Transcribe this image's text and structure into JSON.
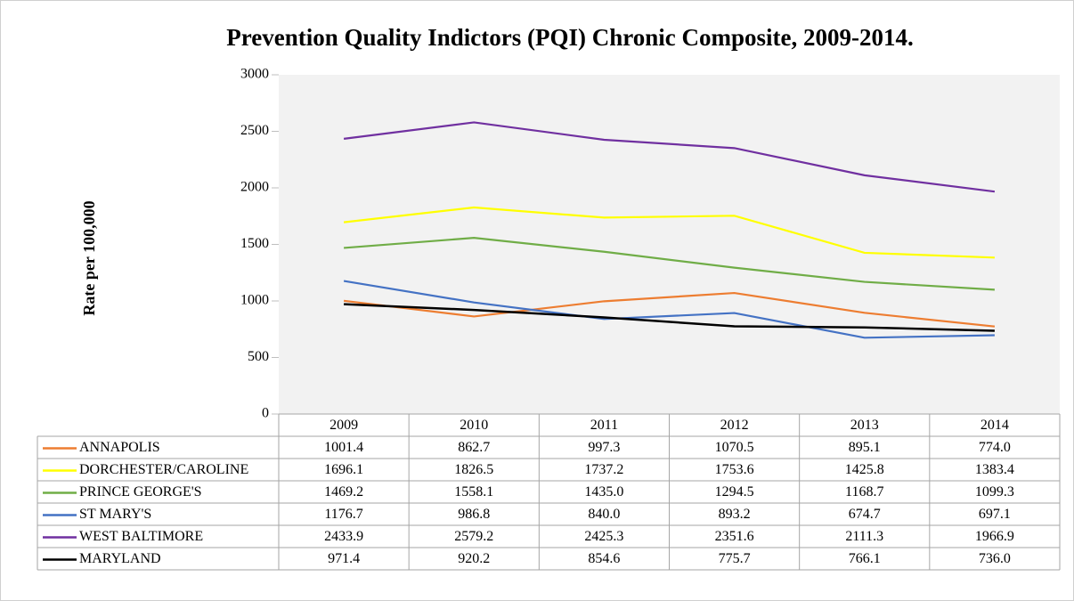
{
  "chart_data": {
    "type": "line",
    "title": "Prevention Quality Indictors (PQI) Chronic Composite, 2009-2014.",
    "y_label": "Rate per 100,000",
    "categories": [
      "2009",
      "2010",
      "2011",
      "2012",
      "2013",
      "2014"
    ],
    "ylim": [
      0,
      3000
    ],
    "yticks": [
      0,
      500,
      1000,
      1500,
      2000,
      2500,
      3000
    ],
    "series": [
      {
        "name": "ANNAPOLIS",
        "color": "#ed7d31",
        "values": [
          1001.4,
          862.7,
          997.3,
          1070.5,
          895.1,
          774
        ],
        "value_labels": [
          "1001.4",
          "862.7",
          "997.3",
          "1070.5",
          "895.1",
          "774.0"
        ]
      },
      {
        "name": "DORCHESTER/CAROLINE",
        "color": "#ffff00",
        "values": [
          1696.1,
          1826.5,
          1737.2,
          1753.6,
          1425.8,
          1383.4
        ],
        "value_labels": [
          "1696.1",
          "1826.5",
          "1737.2",
          "1753.6",
          "1425.8",
          "1383.4"
        ]
      },
      {
        "name": "PRINCE GEORGE'S",
        "color": "#70ad47",
        "values": [
          1469.2,
          1558.1,
          1435,
          1294.5,
          1168.7,
          1099.3
        ],
        "value_labels": [
          "1469.2",
          "1558.1",
          "1435.0",
          "1294.5",
          "1168.7",
          "1099.3"
        ]
      },
      {
        "name": "ST MARY'S",
        "color": "#4472c4",
        "values": [
          1176.7,
          986.8,
          840,
          893.2,
          674.7,
          697.1
        ],
        "value_labels": [
          "1176.7",
          "986.8",
          "840.0",
          "893.2",
          "674.7",
          "697.1"
        ]
      },
      {
        "name": "WEST BALTIMORE",
        "color": "#7030a0",
        "values": [
          2433.9,
          2579.2,
          2425.3,
          2351.6,
          2111.3,
          1966.9
        ],
        "value_labels": [
          "2433.9",
          "2579.2",
          "2425.3",
          "2351.6",
          "2111.3",
          "1966.9"
        ]
      },
      {
        "name": "MARYLAND",
        "color": "#000000",
        "values": [
          971.4,
          920.2,
          854.6,
          775.7,
          766.1,
          736
        ],
        "value_labels": [
          "971.4",
          "920.2",
          "854.6",
          "775.7",
          "766.1",
          "736.0"
        ]
      }
    ]
  }
}
